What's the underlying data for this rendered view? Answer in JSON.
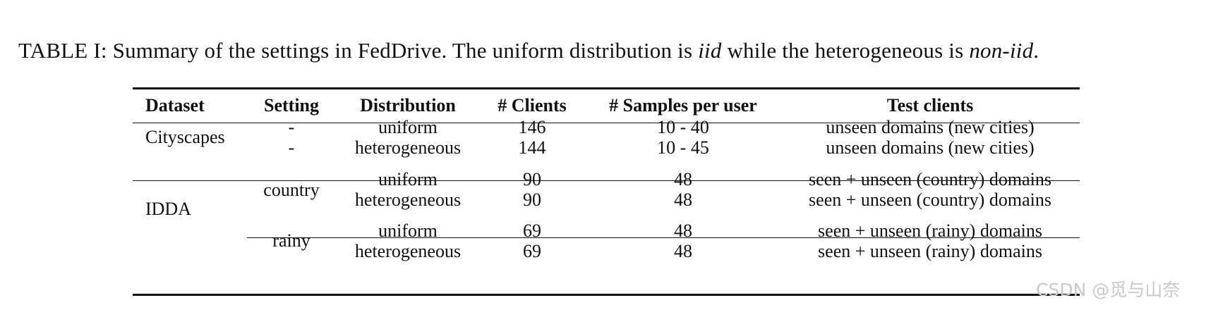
{
  "caption": {
    "prefix": "TABLE I: Summary of the settings in FedDrive. The uniform distribution is ",
    "iid": "iid",
    "middle": " while the heterogeneous is ",
    "noniid": "non-iid",
    "suffix": "."
  },
  "table": {
    "headers": [
      "Dataset",
      "Setting",
      "Distribution",
      "# Clients",
      "# Samples per user",
      "Test clients"
    ],
    "cityscapes": {
      "dataset": "Cityscapes",
      "rows": [
        {
          "setting": "-",
          "distribution": "uniform",
          "clients": "146",
          "samples": "10 - 40",
          "test": "unseen domains (new cities)"
        },
        {
          "setting": "-",
          "distribution": "heterogeneous",
          "clients": "144",
          "samples": "10 - 45",
          "test": "unseen domains (new cities)"
        }
      ]
    },
    "idda": {
      "dataset": "IDDA",
      "country": {
        "setting": "country",
        "rows": [
          {
            "distribution": "uniform",
            "clients": "90",
            "samples": "48",
            "test": "seen + unseen (country) domains"
          },
          {
            "distribution": "heterogeneous",
            "clients": "90",
            "samples": "48",
            "test": "seen + unseen (country) domains"
          }
        ]
      },
      "rainy": {
        "setting": "rainy",
        "rows": [
          {
            "distribution": "uniform",
            "clients": "69",
            "samples": "48",
            "test": "seen + unseen (rainy) domains"
          },
          {
            "distribution": "heterogeneous",
            "clients": "69",
            "samples": "48",
            "test": "seen + unseen (rainy) domains"
          }
        ]
      }
    }
  },
  "watermark": "CSDN @觅与山奈"
}
